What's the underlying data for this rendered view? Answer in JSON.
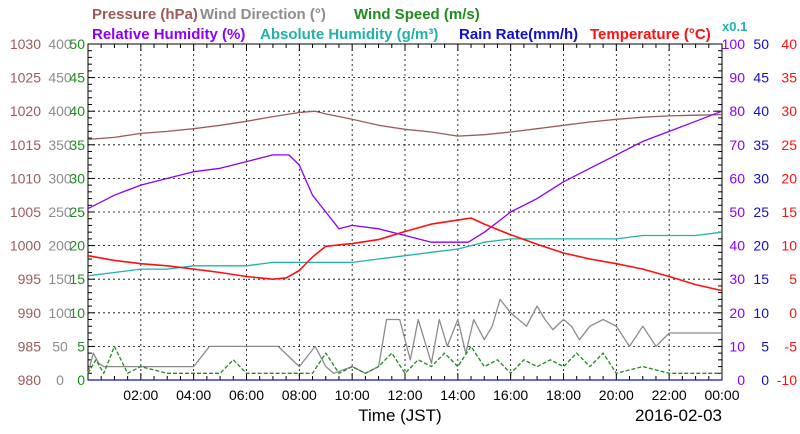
{
  "legend": {
    "row1": [
      {
        "text": "Pressure (hPa)",
        "color": "#9b5b5b"
      },
      {
        "text": "Wind Direction (°)",
        "color": "#8c8c8c"
      },
      {
        "text": "Wind Speed (m/s)",
        "color": "#1e8c1e"
      }
    ],
    "row2": [
      {
        "text": "Relative Humidity (%)",
        "color": "#8a00ff"
      },
      {
        "text": "Absolute Humidity (g/m³)",
        "color": "#20b2aa"
      },
      {
        "text": "Rain Rate(mm/h)",
        "color": "#1010cc"
      },
      {
        "text": "Temperature (°C)",
        "color": "#ff1010"
      }
    ],
    "abs_hum_scale": "x0.1"
  },
  "axes": {
    "pressure": {
      "ticks": [
        "1030",
        "1025",
        "1020",
        "1015",
        "1010",
        "1005",
        "1000",
        "995",
        "990",
        "985",
        "980"
      ],
      "range": [
        980,
        1030
      ],
      "color": "#9b5b5b"
    },
    "wind_direction": {
      "ticks": [
        "400",
        "450",
        "400",
        "350",
        "300",
        "250",
        "200",
        "150",
        "100",
        "50",
        "0"
      ],
      "color": "#8c8c8c"
    },
    "wind_speed": {
      "ticks": [
        "50",
        "45",
        "40",
        "35",
        "30",
        "25",
        "20",
        "15",
        "10",
        "5",
        "0"
      ],
      "range": [
        0,
        50
      ],
      "color": "#1e8c1e"
    },
    "humidity": {
      "ticks": [
        "100",
        "90",
        "80",
        "70",
        "60",
        "50",
        "40",
        "30",
        "20",
        "10",
        "0"
      ],
      "range": [
        0,
        100
      ],
      "color": "#8a00ff"
    },
    "rain": {
      "ticks": [
        "50",
        "45",
        "40",
        "35",
        "30",
        "25",
        "20",
        "15",
        "10",
        "5",
        "0"
      ],
      "range": [
        0,
        50
      ],
      "color": "#1010cc"
    },
    "temperature": {
      "ticks": [
        "40",
        "35",
        "30",
        "25",
        "20",
        "15",
        "10",
        "5",
        "0",
        "-5",
        "-10"
      ],
      "range": [
        -10,
        40
      ],
      "color": "#ff1010"
    },
    "time": {
      "ticks": [
        "02:00",
        "04:00",
        "06:00",
        "08:00",
        "10:00",
        "12:00",
        "14:00",
        "16:00",
        "18:00",
        "20:00",
        "22:00",
        "00:00"
      ],
      "label": "Time (JST)"
    }
  },
  "date": "2016-02-03",
  "chart_data": {
    "type": "line",
    "x_range_hours": [
      0,
      24
    ],
    "grid": true,
    "series": [
      {
        "name": "Pressure (hPa)",
        "color": "#9b5b5b",
        "axis": "pressure",
        "x": [
          0,
          1,
          2,
          3,
          4,
          5,
          6,
          7,
          8,
          8.6,
          9,
          10,
          11,
          12,
          13,
          14,
          15,
          16,
          17,
          18,
          19,
          20,
          21,
          22,
          23,
          24
        ],
        "y": [
          1015.8,
          1016.1,
          1016.7,
          1017.0,
          1017.4,
          1017.9,
          1018.5,
          1019.2,
          1019.8,
          1020.0,
          1019.6,
          1018.8,
          1017.9,
          1017.3,
          1016.9,
          1016.3,
          1016.5,
          1016.9,
          1017.4,
          1017.9,
          1018.4,
          1018.8,
          1019.1,
          1019.3,
          1019.4,
          1019.5
        ]
      },
      {
        "name": "Relative Humidity (%)",
        "color": "#8a00ff",
        "axis": "humidity",
        "x": [
          0,
          0.5,
          1,
          2,
          3,
          4,
          5,
          6,
          7,
          7.6,
          8,
          8.5,
          9,
          9.5,
          10,
          11,
          12,
          13,
          14,
          14.4,
          15,
          15.5,
          16,
          17,
          18,
          19,
          20,
          21,
          22,
          23,
          24
        ],
        "y": [
          51,
          53,
          55,
          58,
          60,
          62,
          63,
          65,
          67,
          67,
          64,
          55,
          50,
          45,
          46,
          45,
          43,
          41,
          41,
          41,
          44,
          47,
          50,
          54,
          59,
          63,
          67,
          71,
          74,
          77,
          80
        ]
      },
      {
        "name": "Absolute Humidity (g/m³)",
        "color": "#20b2aa",
        "axis": "humidity",
        "x": [
          0,
          1,
          2,
          3,
          4,
          5,
          6,
          7,
          8,
          9,
          10,
          11,
          12,
          13,
          14,
          15,
          16,
          17,
          18,
          19,
          20,
          21,
          22,
          23,
          24
        ],
        "y": [
          31,
          32,
          33,
          33,
          34,
          34,
          34,
          35,
          35,
          35,
          35,
          36,
          37,
          38,
          39,
          41,
          42,
          42,
          42,
          42,
          42,
          43,
          43,
          43,
          44
        ]
      },
      {
        "name": "Temperature (°C)",
        "color": "#ff1010",
        "axis": "temperature",
        "x": [
          0,
          1,
          2,
          3,
          4,
          5,
          6,
          7,
          7.5,
          8,
          8.5,
          9,
          10,
          11,
          12,
          13,
          14,
          14.5,
          15,
          16,
          17,
          18,
          19,
          20,
          21,
          22,
          23,
          24
        ],
        "y": [
          8.5,
          7.8,
          7.3,
          7.0,
          6.5,
          6.0,
          5.4,
          5.0,
          5.2,
          6.3,
          8.3,
          9.9,
          10.3,
          10.9,
          12.1,
          13.2,
          13.8,
          14.1,
          13.2,
          11.6,
          10.2,
          8.9,
          8.0,
          7.3,
          6.5,
          5.4,
          4.2,
          3.3
        ]
      },
      {
        "name": "Rain Rate(mm/h)",
        "color": "#1010cc",
        "axis": "rain",
        "x": [
          0,
          24
        ],
        "y": [
          0,
          0
        ]
      },
      {
        "name": "Wind Direction (°)",
        "color": "#8c8c8c",
        "axis": "wind_direction",
        "x": [
          0,
          0.2,
          0.4,
          0.6,
          2,
          4,
          4.6,
          5.2,
          6,
          6.6,
          7.2,
          8,
          8.6,
          9,
          9.3,
          10,
          10.5,
          11,
          11.3,
          11.8,
          12.2,
          12.5,
          13,
          13.3,
          13.6,
          14,
          14.3,
          14.6,
          15,
          15.3,
          15.6,
          16,
          16.3,
          16.6,
          17,
          17.3,
          17.6,
          18,
          18.3,
          18.6,
          19,
          19.5,
          20,
          20.5,
          21,
          21.5,
          22,
          23,
          24
        ],
        "y": [
          10,
          40,
          25,
          20,
          20,
          20,
          50,
          50,
          50,
          50,
          50,
          20,
          50,
          20,
          10,
          20,
          10,
          20,
          90,
          90,
          30,
          90,
          25,
          90,
          50,
          90,
          40,
          90,
          60,
          80,
          120,
          100,
          90,
          80,
          110,
          90,
          75,
          90,
          80,
          60,
          80,
          90,
          80,
          50,
          80,
          50,
          70,
          70,
          70
        ]
      },
      {
        "name": "Wind Speed (m/s)",
        "color": "#1e8c1e",
        "axis": "wind_speed",
        "x": [
          0,
          0.3,
          0.6,
          1,
          1.5,
          2,
          3,
          4,
          5,
          5.5,
          6,
          7,
          8,
          8.5,
          9,
          9.5,
          10,
          10.5,
          11,
          11.5,
          12,
          12.5,
          13,
          13.5,
          14,
          14.5,
          15,
          15.5,
          16,
          16.5,
          17,
          17.5,
          18,
          18.5,
          19,
          19.5,
          20,
          21,
          22,
          23,
          24
        ],
        "y": [
          1,
          3,
          1,
          5,
          1,
          2,
          1,
          1,
          1,
          3,
          1,
          1,
          1,
          1,
          4,
          1,
          2,
          1,
          2,
          4,
          1,
          3,
          2,
          4,
          2,
          5,
          2,
          3,
          1,
          3,
          2,
          3,
          2,
          4,
          2,
          4,
          1,
          2,
          1,
          1,
          1
        ]
      }
    ]
  }
}
